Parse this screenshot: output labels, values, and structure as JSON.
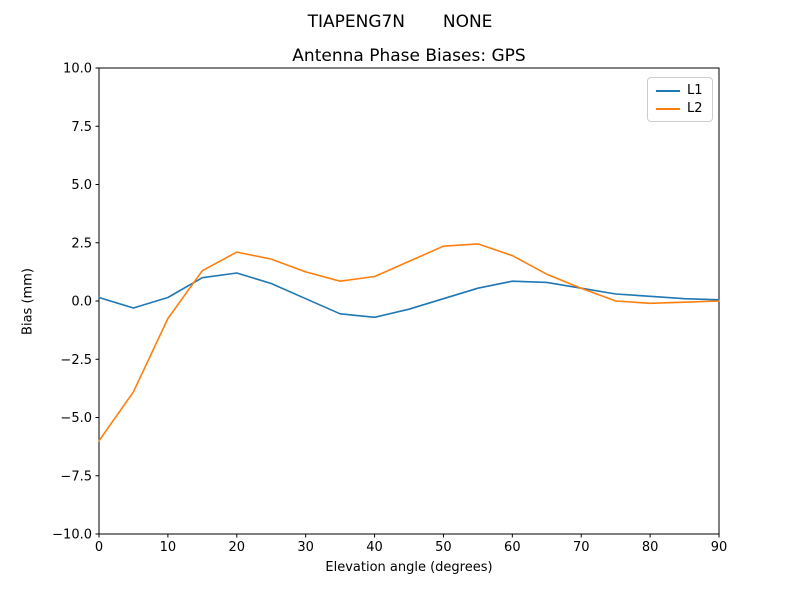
{
  "suptitle": "TIAPENG7N       NONE",
  "chart_data": {
    "type": "line",
    "title": "Antenna Phase Biases: GPS",
    "xlabel": "Elevation angle (degrees)",
    "ylabel": "Bias (mm)",
    "xlim": [
      0,
      90
    ],
    "ylim": [
      -10,
      10
    ],
    "x_ticks": [
      0,
      10,
      20,
      30,
      40,
      50,
      60,
      70,
      80,
      90
    ],
    "x_tick_labels": [
      "0",
      "10",
      "20",
      "30",
      "40",
      "50",
      "60",
      "70",
      "80",
      "90"
    ],
    "y_ticks": [
      -10.0,
      -7.5,
      -5.0,
      -2.5,
      0.0,
      2.5,
      5.0,
      7.5,
      10.0
    ],
    "y_tick_labels": [
      "−10.0",
      "−7.5",
      "−5.0",
      "−2.5",
      "0.0",
      "2.5",
      "5.0",
      "7.5",
      "10.0"
    ],
    "grid": false,
    "legend_position": "upper right",
    "frame_color": "#000000",
    "x": [
      0,
      5,
      10,
      15,
      20,
      25,
      30,
      35,
      40,
      45,
      50,
      55,
      60,
      65,
      70,
      75,
      80,
      85,
      90
    ],
    "series": [
      {
        "name": "L1",
        "color": "#1f77b4",
        "values": [
          0.15,
          -0.3,
          0.15,
          1.0,
          1.2,
          0.75,
          0.1,
          -0.55,
          -0.7,
          -0.35,
          0.1,
          0.55,
          0.85,
          0.8,
          0.55,
          0.3,
          0.2,
          0.1,
          0.05
        ]
      },
      {
        "name": "L2",
        "color": "#ff7f0e",
        "values": [
          -6.0,
          -3.9,
          -0.75,
          1.3,
          2.1,
          1.8,
          1.25,
          0.85,
          1.05,
          1.7,
          2.35,
          2.45,
          1.95,
          1.15,
          0.55,
          0.0,
          -0.1,
          -0.05,
          0.0
        ]
      }
    ]
  }
}
